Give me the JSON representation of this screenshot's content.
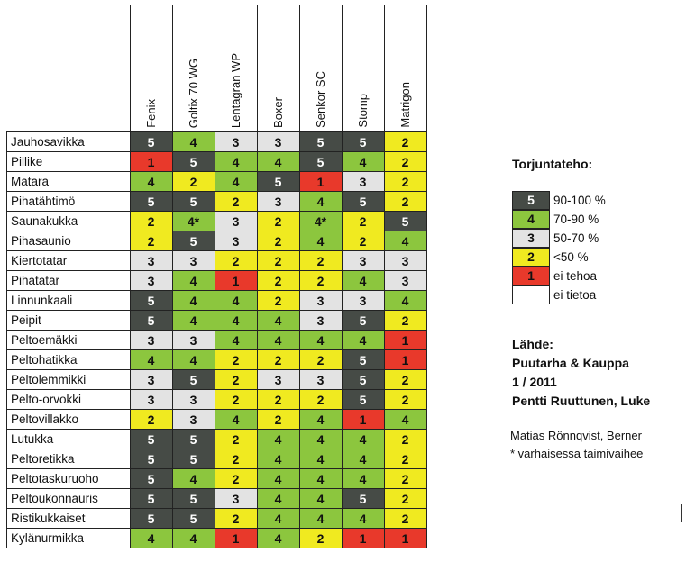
{
  "columns": [
    "Fenix",
    "Goltix 70 WG",
    "Lentagran WP",
    "Boxer",
    "Senkor SC",
    "Stomp",
    "Matrigon"
  ],
  "rows": [
    {
      "name": "Jauhosavikka",
      "values": [
        "5",
        "4",
        "3",
        "3",
        "5",
        "5",
        "2"
      ]
    },
    {
      "name": "Pillike",
      "values": [
        "1",
        "5",
        "4",
        "4",
        "5",
        "4",
        "2"
      ]
    },
    {
      "name": "Matara",
      "values": [
        "4",
        "2",
        "4",
        "5",
        "1",
        "3",
        "2"
      ]
    },
    {
      "name": "Pihatähtimö",
      "values": [
        "5",
        "5",
        "2",
        "3",
        "4",
        "5",
        "2"
      ]
    },
    {
      "name": "Saunakukka",
      "values": [
        "2",
        "4*",
        "3",
        "2",
        "4*",
        "2",
        "5"
      ]
    },
    {
      "name": "Pihasaunio",
      "values": [
        "2",
        "5",
        "3",
        "2",
        "4",
        "2",
        "4"
      ]
    },
    {
      "name": "Kiertotatar",
      "values": [
        "3",
        "3",
        "2",
        "2",
        "2",
        "3",
        "3"
      ]
    },
    {
      "name": "Pihatatar",
      "values": [
        "3",
        "4",
        "1",
        "2",
        "2",
        "4",
        "3"
      ]
    },
    {
      "name": "Linnunkaali",
      "values": [
        "5",
        "4",
        "4",
        "2",
        "3",
        "3",
        "4"
      ]
    },
    {
      "name": "Peipit",
      "values": [
        "5",
        "4",
        "4",
        "4",
        "3",
        "5",
        "2"
      ]
    },
    {
      "name": "Peltoemäkki",
      "values": [
        "3",
        "3",
        "4",
        "4",
        "4",
        "4",
        "1"
      ]
    },
    {
      "name": "Peltohatikka",
      "values": [
        "4",
        "4",
        "2",
        "2",
        "2",
        "5",
        "1"
      ]
    },
    {
      "name": "Peltolemmikki",
      "values": [
        "3",
        "5",
        "2",
        "3",
        "3",
        "5",
        "2"
      ]
    },
    {
      "name": "Pelto-orvokki",
      "values": [
        "3",
        "3",
        "2",
        "2",
        "2",
        "5",
        "2"
      ]
    },
    {
      "name": "Peltovillakko",
      "values": [
        "2",
        "3",
        "4",
        "2",
        "4",
        "1",
        "4"
      ]
    },
    {
      "name": "Lutukka",
      "values": [
        "5",
        "5",
        "2",
        "4",
        "4",
        "4",
        "2"
      ]
    },
    {
      "name": "Peltoretikka",
      "values": [
        "5",
        "5",
        "2",
        "4",
        "4",
        "4",
        "2"
      ]
    },
    {
      "name": "Peltotaskuruoho",
      "values": [
        "5",
        "4",
        "2",
        "4",
        "4",
        "4",
        "2"
      ]
    },
    {
      "name": "Peltoukonnauris",
      "values": [
        "5",
        "5",
        "3",
        "4",
        "4",
        "5",
        "2"
      ]
    },
    {
      "name": "Ristikukkaiset",
      "values": [
        "5",
        "5",
        "2",
        "4",
        "4",
        "4",
        "2"
      ]
    },
    {
      "name": "Kylänurmikka",
      "values": [
        "4",
        "4",
        "1",
        "4",
        "2",
        "1",
        "1"
      ]
    }
  ],
  "legend": {
    "title": "Torjuntateho:",
    "items": [
      {
        "value": "5",
        "label": "90-100 %"
      },
      {
        "value": "4",
        "label": "70-90 %"
      },
      {
        "value": "3",
        "label": "50-70 %"
      },
      {
        "value": "2",
        "label": "<50 %"
      },
      {
        "value": "1",
        "label": "ei tehoa"
      },
      {
        "value": "",
        "label": "ei tietoa"
      }
    ]
  },
  "colors": {
    "5": "#464b46",
    "4": "#8cc63e",
    "3": "#e3e3e3",
    "2": "#f0ea20",
    "1": "#e8392b",
    "none": "#ffffff"
  },
  "source": {
    "heading": "Lähde:",
    "line1": "Puutarha & Kauppa",
    "line2": "1 / 2011",
    "line3": "Pentti Ruuttunen, Luke"
  },
  "credits": {
    "author": "Matias Rönnqvist, Berner",
    "footnote": "* varhaisessa taimivaihee"
  }
}
